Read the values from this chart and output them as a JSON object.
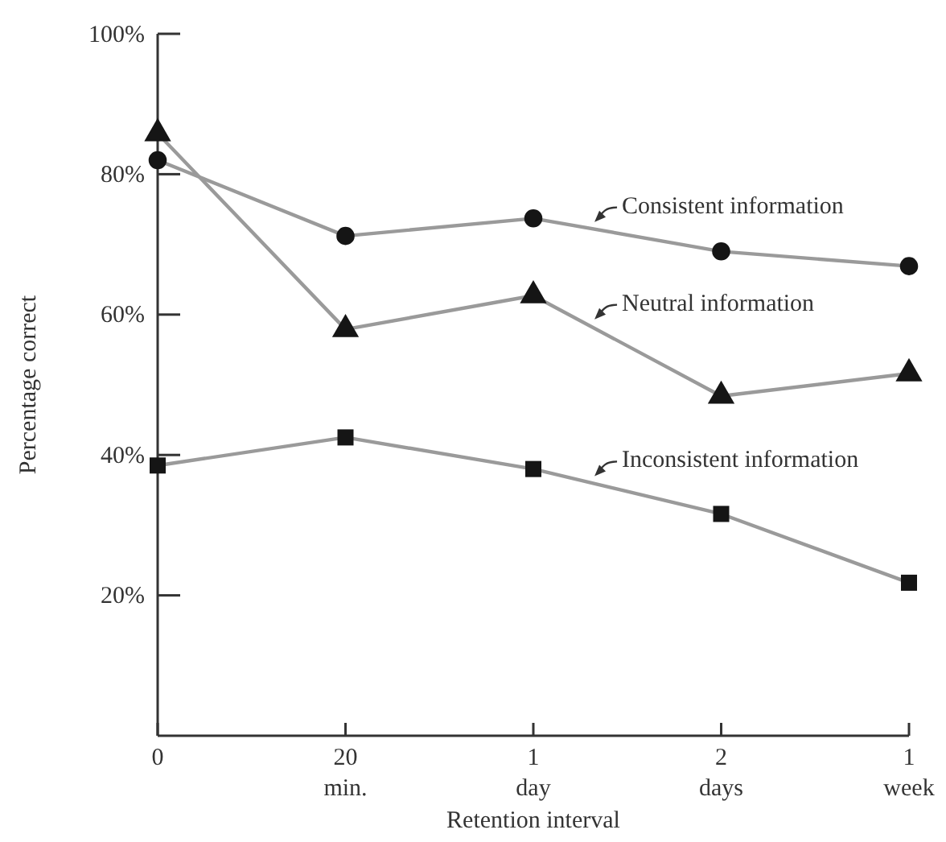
{
  "chart_data": {
    "type": "line",
    "xlabel": "Retention interval",
    "ylabel": "Percentage correct",
    "categories": [
      "0",
      "20 min.",
      "1 day",
      "2 days",
      "1 week"
    ],
    "ylim": [
      0,
      100
    ],
    "yticks": [
      {
        "value": 20,
        "label": "20%"
      },
      {
        "value": 40,
        "label": "40%"
      },
      {
        "value": 60,
        "label": "60%"
      },
      {
        "value": 80,
        "label": "80%"
      },
      {
        "value": 100,
        "label": "100%"
      }
    ],
    "grid": false,
    "line_style": "solid",
    "series": [
      {
        "name": "Consistent information",
        "color": "#9a9a9a",
        "marker": "circle",
        "values": [
          82,
          71.2,
          73.7,
          69,
          66.9
        ]
      },
      {
        "name": "Neutral information",
        "color": "#9a9a9a",
        "marker": "triangle",
        "values": [
          85.8,
          57.9,
          62.7,
          48.4,
          51.6
        ]
      },
      {
        "name": "Inconsistent information",
        "color": "#9a9a9a",
        "marker": "square",
        "values": [
          38.5,
          42.5,
          38,
          31.6,
          21.8
        ]
      }
    ]
  }
}
